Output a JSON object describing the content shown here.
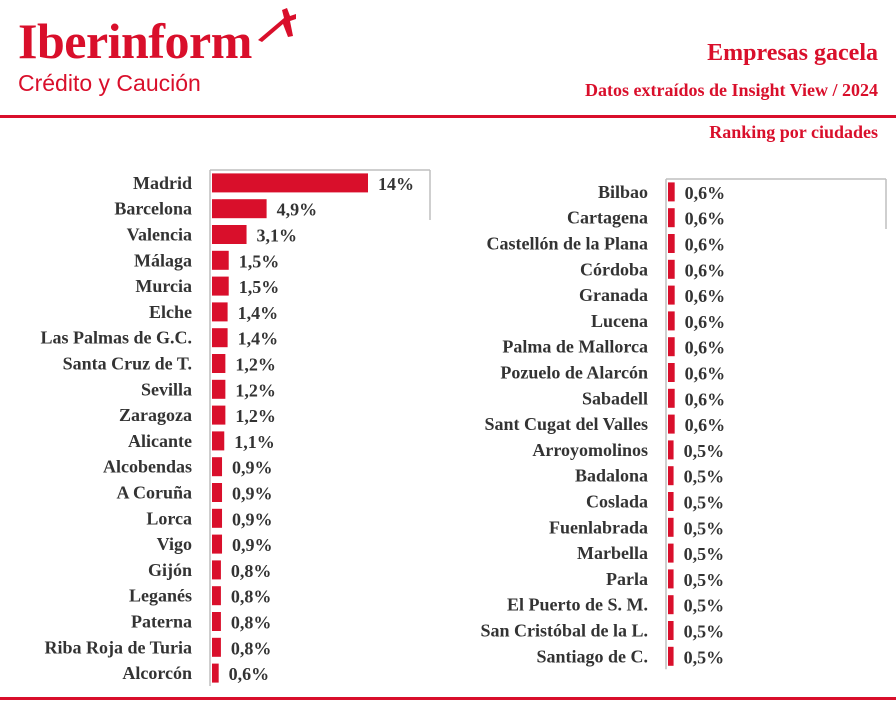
{
  "brand": {
    "name": "Iberinform",
    "subtitle": "Crédito y Caución"
  },
  "header": {
    "title": "Empresas gacela",
    "subtitle": "Datos extraídos de Insight View / 2024",
    "ranking": "Ranking por ciudades"
  },
  "colors": {
    "accent": "#d90f2b",
    "text": "#333333",
    "axis": "#bfbfbf"
  },
  "chart_data": [
    {
      "type": "bar",
      "orientation": "horizontal",
      "categories": [
        "Madrid",
        "Barcelona",
        "Valencia",
        "Málaga",
        "Murcia",
        "Elche",
        "Las Palmas de G.C.",
        "Santa Cruz de T.",
        "Sevilla",
        "Zaragoza",
        "Alicante",
        "Alcobendas",
        "A Coruña",
        "Lorca",
        "Vigo",
        "Gijón",
        "Leganés",
        "Paterna",
        "Riba Roja de Turia",
        "Alcorcón"
      ],
      "values": [
        14,
        4.9,
        3.1,
        1.5,
        1.5,
        1.4,
        1.4,
        1.2,
        1.2,
        1.2,
        1.1,
        0.9,
        0.9,
        0.9,
        0.9,
        0.8,
        0.8,
        0.8,
        0.8,
        0.6
      ],
      "labels": [
        "14%",
        "4,9%",
        "3,1%",
        "1,5%",
        "1,5%",
        "1,4%",
        "1,4%",
        "1,2%",
        "1,2%",
        "1,2%",
        "1,1%",
        "0,9%",
        "0,9%",
        "0,9%",
        "0,9%",
        "0,8%",
        "0,8%",
        "0,8%",
        "0,8%",
        "0,6%"
      ],
      "xlim": [
        0,
        14
      ],
      "grid": false,
      "legend": "none"
    },
    {
      "type": "bar",
      "orientation": "horizontal",
      "categories": [
        "Bilbao",
        "Cartagena",
        "Castellón de la Plana",
        "Córdoba",
        "Granada",
        "Lucena",
        "Palma de Mallorca",
        "Pozuelo de Alarcón",
        "Sabadell",
        "Sant Cugat del Valles",
        "Arroyomolinos",
        "Badalona",
        "Coslada",
        "Fuenlabrada",
        "Marbella",
        "Parla",
        "El Puerto de S. M.",
        "San Cristóbal de la L.",
        "Santiago de C."
      ],
      "values": [
        0.6,
        0.6,
        0.6,
        0.6,
        0.6,
        0.6,
        0.6,
        0.6,
        0.6,
        0.6,
        0.5,
        0.5,
        0.5,
        0.5,
        0.5,
        0.5,
        0.5,
        0.5,
        0.5
      ],
      "labels": [
        "0,6%",
        "0,6%",
        "0,6%",
        "0,6%",
        "0,6%",
        "0,6%",
        "0,6%",
        "0,6%",
        "0,6%",
        "0,6%",
        "0,5%",
        "0,5%",
        "0,5%",
        "0,5%",
        "0,5%",
        "0,5%",
        "0,5%",
        "0,5%",
        "0,5%"
      ],
      "xlim": [
        0,
        14
      ],
      "grid": false,
      "legend": "none"
    }
  ]
}
